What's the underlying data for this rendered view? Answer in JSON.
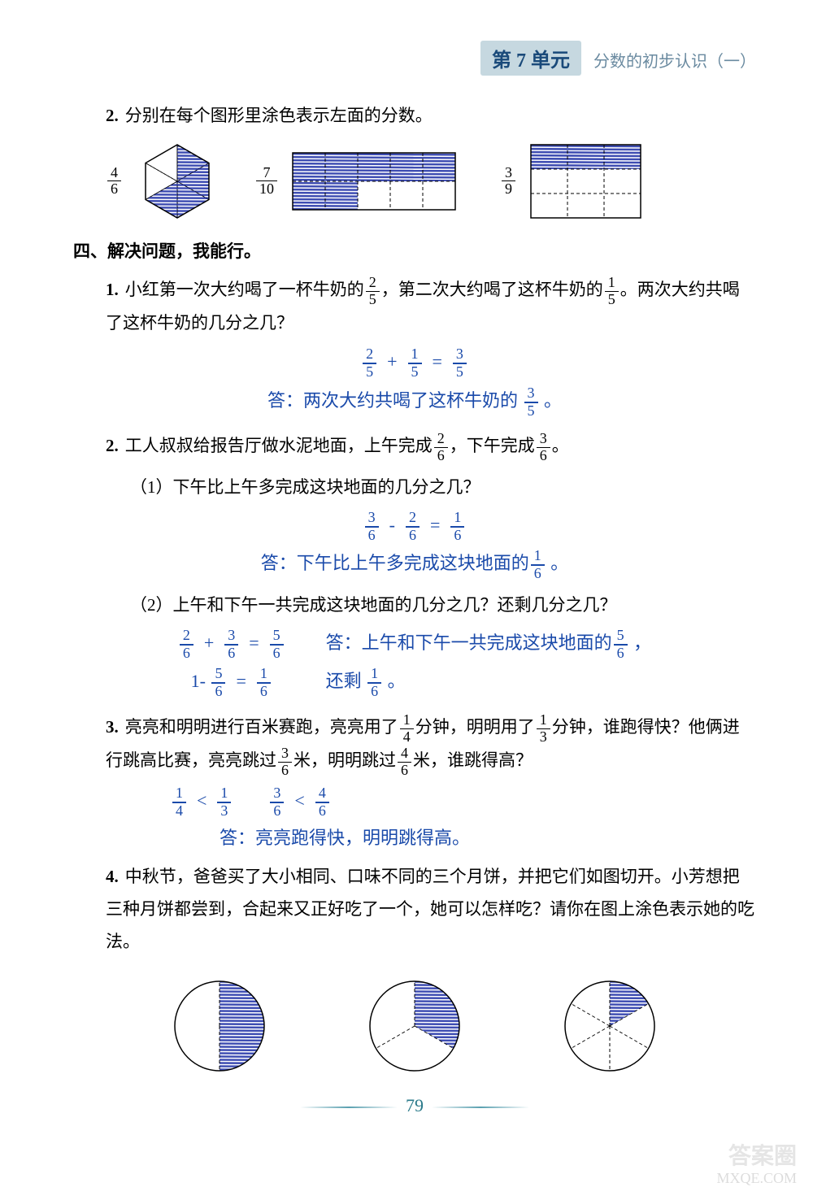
{
  "header": {
    "unit_label": "第 7 单元",
    "subtitle": "分数的初步认识（一）"
  },
  "q2_shapes": {
    "num": "2.",
    "text": "分别在每个图形里涂色表示左面的分数。",
    "fractions": [
      {
        "n": "4",
        "d": "6"
      },
      {
        "n": "7",
        "d": "10"
      },
      {
        "n": "3",
        "d": "9"
      }
    ],
    "hexagon": {
      "parts": 6,
      "shaded": 4,
      "fill": "#2a3aaa",
      "stroke": "#000000"
    },
    "rect10": {
      "cols": 5,
      "rows": 2,
      "shaded": 7,
      "fill": "#2a3aaa",
      "stroke": "#000000"
    },
    "rect9": {
      "cols": 3,
      "rows": 3,
      "shaded": 3,
      "fill": "#2a3aaa",
      "stroke": "#000000"
    }
  },
  "section4_title": "四、解决问题，我能行。",
  "p1": {
    "num": "1.",
    "text_before": "小红第一次大约喝了一杯牛奶的",
    "f1": {
      "n": "2",
      "d": "5"
    },
    "text_mid": "，第二次大约喝了这杯牛奶的",
    "f2": {
      "n": "1",
      "d": "5"
    },
    "text_after": "。两次大约共喝了这杯牛奶的几分之几？",
    "ans_eq": {
      "a": {
        "n": "2",
        "d": "5"
      },
      "op": "+",
      "b": {
        "n": "1",
        "d": "5"
      },
      "eq": "=",
      "r": {
        "n": "3",
        "d": "5"
      }
    },
    "ans_text_before": "答：两次大约共喝了这杯牛奶的 ",
    "ans_frac": {
      "n": "3",
      "d": "5"
    },
    "ans_text_after": " 。"
  },
  "p2": {
    "num": "2.",
    "text_before": "工人叔叔给报告厅做水泥地面，上午完成",
    "f1": {
      "n": "2",
      "d": "6"
    },
    "text_mid": "，下午完成",
    "f2": {
      "n": "3",
      "d": "6"
    },
    "text_after": "。",
    "sub1": {
      "label": "（1）下午比上午多完成这块地面的几分之几？",
      "ans_eq": {
        "a": {
          "n": "3",
          "d": "6"
        },
        "op": "-",
        "b": {
          "n": "2",
          "d": "6"
        },
        "eq": "=",
        "r": {
          "n": "1",
          "d": "6"
        }
      },
      "ans_text_before": "答：下午比上午多完成这块地面的",
      "ans_frac": {
        "n": "1",
        "d": "6"
      },
      "ans_text_after": " 。"
    },
    "sub2": {
      "label": "（2）上午和下午一共完成这块地面的几分之几？还剩几分之几？",
      "eq1": {
        "a": {
          "n": "2",
          "d": "6"
        },
        "op": "+",
        "b": {
          "n": "3",
          "d": "6"
        },
        "eq": "=",
        "r": {
          "n": "5",
          "d": "6"
        }
      },
      "eq2_prefix": "1-",
      "eq2": {
        "a": {
          "n": "5",
          "d": "6"
        },
        "eq": "=",
        "r": {
          "n": "1",
          "d": "6"
        }
      },
      "ans_line1_before": "答：上午和下午一共完成这块地面的",
      "ans_line1_frac": {
        "n": "5",
        "d": "6"
      },
      "ans_line1_after": " ，",
      "ans_line2_before": "还剩 ",
      "ans_line2_frac": {
        "n": "1",
        "d": "6"
      },
      "ans_line2_after": " 。"
    }
  },
  "p3": {
    "num": "3.",
    "t1": "亮亮和明明进行百米赛跑，亮亮用了",
    "f1": {
      "n": "1",
      "d": "4"
    },
    "t2": "分钟，明明用了",
    "f2": {
      "n": "1",
      "d": "3"
    },
    "t3": "分钟，谁跑得快？他俩进行跳高比赛，亮亮跳过",
    "f3": {
      "n": "3",
      "d": "6"
    },
    "t4": "米，明明跳过",
    "f4": {
      "n": "4",
      "d": "6"
    },
    "t5": "米，谁跳得高？",
    "cmp1": {
      "a": {
        "n": "1",
        "d": "4"
      },
      "op": "<",
      "b": {
        "n": "1",
        "d": "3"
      }
    },
    "cmp2": {
      "a": {
        "n": "3",
        "d": "6"
      },
      "op": "<",
      "b": {
        "n": "4",
        "d": "6"
      }
    },
    "ans": "答：亮亮跑得快，明明跳得高。"
  },
  "p4": {
    "num": "4.",
    "text": "中秋节，爸爸买了大小相同、口味不同的三个月饼，并把它们如图切开。小芳想把三种月饼都尝到，合起来又正好吃了一个，她可以怎样吃？请你在图上涂色表示她的吃法。",
    "circles": [
      {
        "parts": 2,
        "shaded": 1,
        "fill": "#2a3aaa",
        "stroke": "#000000"
      },
      {
        "parts": 3,
        "shaded": 1,
        "fill": "#2a3aaa",
        "stroke": "#000000"
      },
      {
        "parts": 6,
        "shaded": 1,
        "fill": "#2a3aaa",
        "stroke": "#000000"
      }
    ]
  },
  "page_number": "79",
  "watermark1": "答案圈",
  "watermark2": "MXQE.COM"
}
